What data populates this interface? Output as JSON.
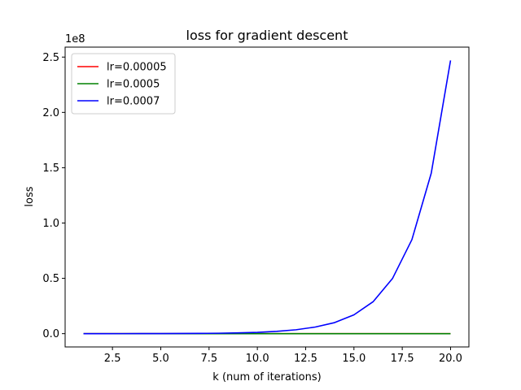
{
  "chart_data": {
    "type": "line",
    "title": "loss for gradient descent",
    "xlabel": "k (num of iterations)",
    "ylabel": "loss",
    "y_offset_label": "1e8",
    "xlim": [
      0.05,
      20.95
    ],
    "ylim": [
      -0.12,
      2.59
    ],
    "x_ticks": [
      2.5,
      5.0,
      7.5,
      10.0,
      12.5,
      15.0,
      17.5,
      20.0
    ],
    "x_tick_labels": [
      "2.5",
      "5.0",
      "7.5",
      "10.0",
      "12.5",
      "15.0",
      "17.5",
      "20.0"
    ],
    "y_ticks": [
      0.0,
      0.5,
      1.0,
      1.5,
      2.0,
      2.5
    ],
    "y_tick_labels": [
      "0.0",
      "0.5",
      "1.0",
      "1.5",
      "2.0",
      "2.5"
    ],
    "grid": false,
    "legend_position": "upper-left",
    "x": [
      1,
      2,
      3,
      4,
      5,
      6,
      7,
      8,
      9,
      10,
      11,
      12,
      13,
      14,
      15,
      16,
      17,
      18,
      19,
      20
    ],
    "series": [
      {
        "name": "lr=0.00005",
        "color": "#ff0000",
        "values": [
          0,
          0,
          0,
          0,
          0,
          0,
          0,
          0,
          0,
          0,
          0,
          0,
          0,
          0,
          0,
          0,
          0,
          0,
          0,
          0
        ]
      },
      {
        "name": "lr=0.0005",
        "color": "#008000",
        "values": [
          0,
          0,
          0,
          0,
          0,
          0,
          0,
          0,
          0,
          0,
          0,
          0,
          0,
          0,
          0,
          0,
          0,
          0,
          0,
          0
        ]
      },
      {
        "name": "lr=0.0007",
        "color": "#0000ff",
        "values": [
          0.0,
          0.0001,
          0.0002,
          0.0004,
          0.0007,
          0.0013,
          0.0023,
          0.004,
          0.007,
          0.012,
          0.021,
          0.035,
          0.06,
          0.1,
          0.17,
          0.29,
          0.5,
          0.85,
          1.45,
          2.47
        ]
      }
    ]
  }
}
